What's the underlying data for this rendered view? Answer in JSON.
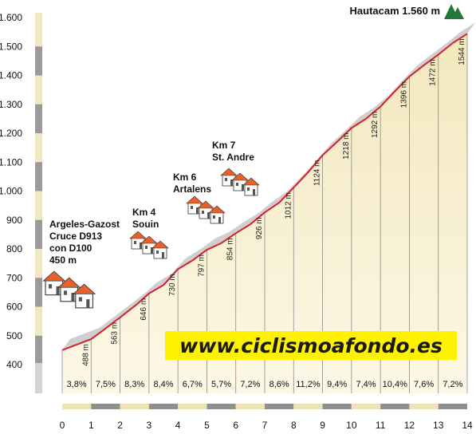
{
  "chart_data": {
    "type": "area",
    "title": "Hautacam 1.560 m",
    "xlim": [
      0,
      14
    ],
    "ylim": [
      400,
      1600
    ],
    "yticks": [
      "400",
      "500",
      "600",
      "700",
      "800",
      "900",
      "1.000",
      "1.100",
      "1.200",
      "1.300",
      "1.400",
      "1.500",
      "1.600"
    ],
    "xticks": [
      "0",
      "1",
      "2",
      "3",
      "4",
      "5",
      "6",
      "7",
      "8",
      "9",
      "10",
      "11",
      "12",
      "13",
      "14"
    ],
    "profile": {
      "x": [
        0,
        1,
        1.5,
        2,
        2.6,
        3,
        3.5,
        4,
        4.5,
        5,
        5.5,
        6,
        6.5,
        7,
        7.5,
        8,
        8.5,
        9,
        9.5,
        10,
        10.5,
        11,
        11.5,
        12,
        12.5,
        13,
        13.5,
        14
      ],
      "y": [
        450,
        488,
        525,
        563,
        610,
        646,
        675,
        730,
        760,
        797,
        820,
        854,
        885,
        926,
        960,
        1012,
        1065,
        1124,
        1170,
        1218,
        1250,
        1292,
        1345,
        1396,
        1435,
        1472,
        1512,
        1544
      ]
    },
    "elevation_labels": [
      "488 m",
      "563 m",
      "646 m",
      "730 m",
      "797 m",
      "854 m",
      "926 m",
      "1012 m",
      "1124 m",
      "1218 m",
      "1292 m",
      "1396 m",
      "1472 m",
      "1544 m"
    ],
    "gradients": [
      "3,8%",
      "7,5%",
      "8,3%",
      "8,4%",
      "6,7%",
      "5,7%",
      "7,2%",
      "8,6%",
      "11,2%",
      "9,4%",
      "7,4%",
      "10,4%",
      "7,6%",
      "7,2%"
    ],
    "annotations": [
      {
        "lines": [
          "Argeles-Gazost",
          "Cruce D913",
          "con D100",
          "450 m"
        ]
      },
      {
        "lines": [
          "Km 4",
          "Souin"
        ]
      },
      {
        "lines": [
          "Km 6",
          "Artalens"
        ]
      },
      {
        "lines": [
          "Km 7",
          "St. Andre"
        ]
      }
    ],
    "watermark": "www.ciclismoafondo.es",
    "colors": {
      "line": "#d2202f",
      "band": "#cfcfcf",
      "fill_top": "#f3e7bd",
      "fill_bottom": "#fdf8e6",
      "watermark_bg": "#fff200",
      "tree": "#1f7a3a"
    },
    "grid": true
  }
}
